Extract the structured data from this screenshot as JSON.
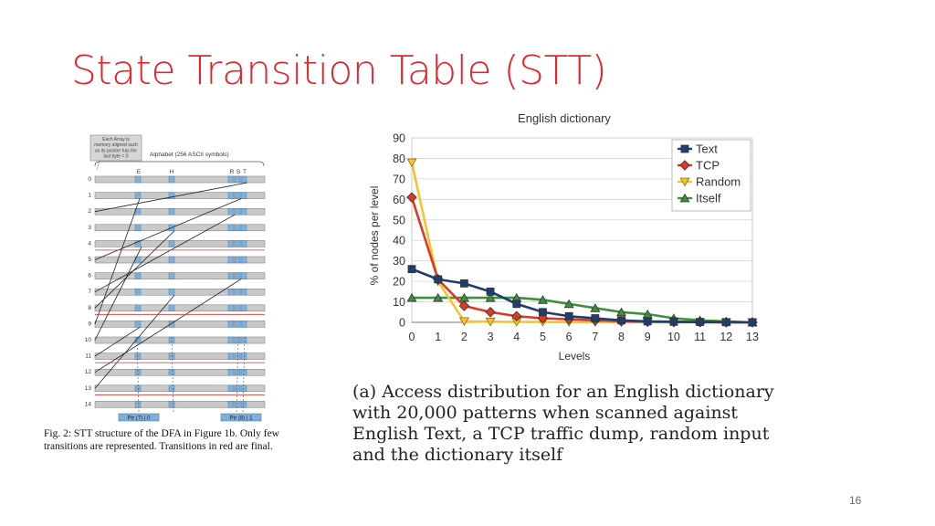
{
  "slide": {
    "title": "State Transition Table (STT)",
    "page_number": "16"
  },
  "stt_figure": {
    "note": "Each Array is memory aligned such as its pointer has the last byte = 0",
    "note_lines": [
      "Each Array is",
      "memory aligned such",
      "as its pointer has the",
      "last byte = 0"
    ],
    "alphabet_label": "Alphabet (256 ASCII symbols)",
    "column_letters": [
      "E",
      "H",
      "R",
      "S",
      "T"
    ],
    "row_labels": [
      "0",
      "1",
      "2",
      "3",
      "4",
      "5",
      "6",
      "7",
      "8",
      "9",
      "10",
      "11",
      "12",
      "13",
      "14"
    ],
    "final_rows": [
      4,
      8,
      11,
      13
    ],
    "ptr_labels": [
      "Ptr (7) | 0",
      "Ptr (8) | 1"
    ],
    "caption": "Fig. 2: STT structure of the DFA in Figure 1b. Only few transitions are represented. Transitions in red are final."
  },
  "chart_caption": "(a) Access distribution for an English dictionary with 20,000 patterns when scanned against English Text, a TCP traffic dump, random input and the dictionary itself",
  "colors": {
    "title": "#e3262b",
    "text": "#1f3e6e",
    "tcp": "#d93a22",
    "random": "#f4c430",
    "itself": "#3f8f3f"
  },
  "chart_data": {
    "type": "line",
    "title": "English dictionary",
    "xlabel": "Levels",
    "ylabel": "% of nodes per level",
    "x": [
      0,
      1,
      2,
      3,
      4,
      5,
      6,
      7,
      8,
      9,
      10,
      11,
      12,
      13
    ],
    "xlim": [
      0,
      13
    ],
    "ylim": [
      0,
      90
    ],
    "yticks": [
      0,
      10,
      20,
      30,
      40,
      50,
      60,
      70,
      80,
      90
    ],
    "grid": true,
    "legend_position": "top-right",
    "series": [
      {
        "name": "Text",
        "marker": "square",
        "color": "#1f3e6e",
        "values": [
          26,
          21,
          19,
          15,
          9,
          5,
          3,
          2,
          1,
          0.5,
          0.3,
          0.2,
          0.1,
          0
        ]
      },
      {
        "name": "TCP",
        "marker": "diamond",
        "color": "#d93a22",
        "values": [
          61,
          21,
          8,
          5,
          3,
          2,
          1.5,
          1,
          0.5,
          0.3,
          0.2,
          0.1,
          0,
          0
        ]
      },
      {
        "name": "Random",
        "marker": "triangle-down",
        "color": "#f4c430",
        "values": [
          78,
          20,
          0.5,
          0.3,
          0.2,
          0.2,
          0.1,
          0.1,
          0.1,
          0,
          0,
          0,
          0,
          0
        ]
      },
      {
        "name": "Itself",
        "marker": "triangle-up",
        "color": "#3f8f3f",
        "values": [
          12,
          12,
          12,
          12,
          12,
          11,
          9,
          7,
          5,
          4,
          2,
          1,
          0.5,
          0
        ]
      }
    ]
  }
}
